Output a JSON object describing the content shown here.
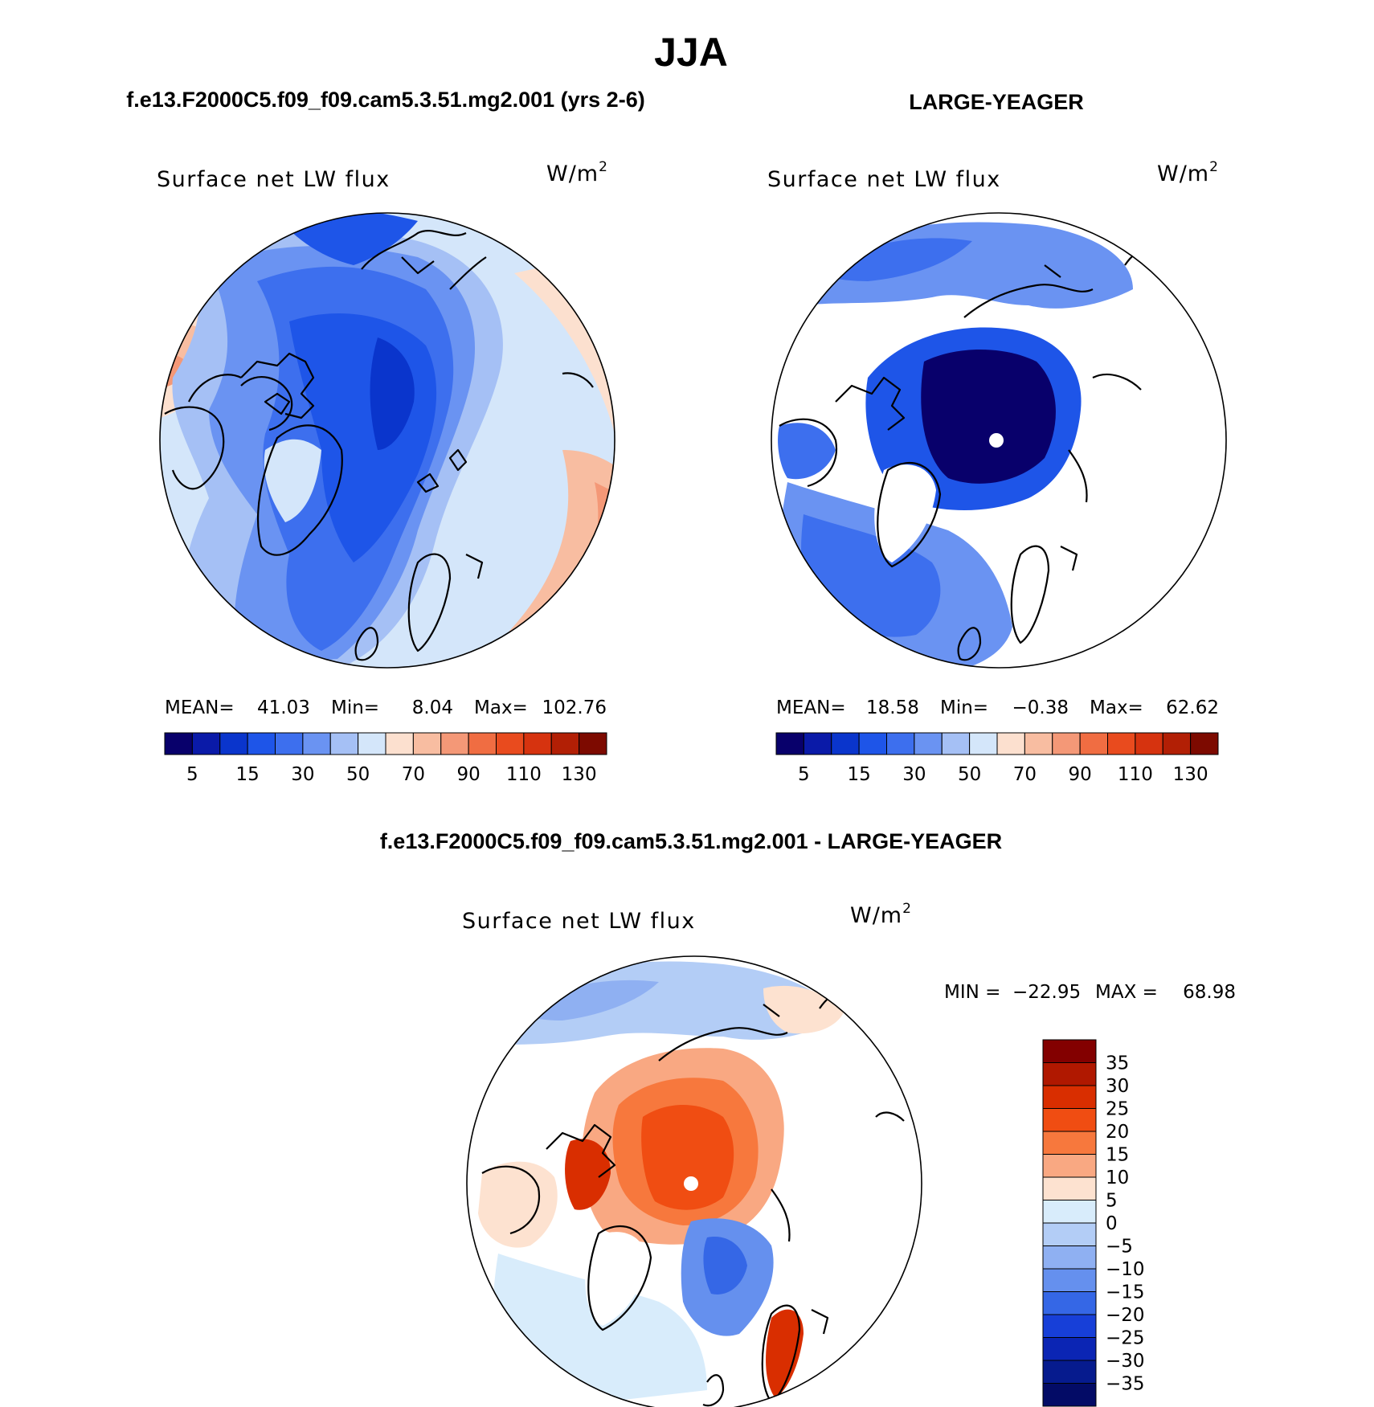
{
  "figure": {
    "season": "JJA",
    "left_header": "f.e13.F2000C5.f09_f09.cam5.3.51.mg2.001 (yrs 2-6)",
    "right_header": "LARGE-YEAGER",
    "diff_header": "f.e13.F2000C5.f09_f09.cam5.3.51.mg2.001 - LARGE-YEAGER"
  },
  "chart_data": [
    {
      "type": "heatmap",
      "projection": "north-polar-stereographic",
      "title": "Surface net LW flux",
      "units": "W/m2",
      "stats": {
        "mean_label": "MEAN=",
        "mean": "41.03",
        "min_label": "Min=",
        "min": "8.04",
        "max_label": "Max=",
        "max": "102.76"
      },
      "colorbar": {
        "orientation": "horizontal",
        "levels": [
          5,
          10,
          15,
          20,
          30,
          40,
          50,
          60,
          70,
          80,
          90,
          100,
          110,
          120,
          130
        ],
        "tick_labels": [
          "5",
          "15",
          "30",
          "50",
          "70",
          "90",
          "110",
          "130"
        ]
      }
    },
    {
      "type": "heatmap",
      "projection": "north-polar-stereographic",
      "title": "Surface net LW flux",
      "units": "W/m2",
      "stats": {
        "mean_label": "MEAN=",
        "mean": "18.58",
        "min_label": "Min=",
        "min": "−0.38",
        "max_label": "Max=",
        "max": "62.62"
      },
      "colorbar": {
        "orientation": "horizontal",
        "levels": [
          5,
          10,
          15,
          20,
          30,
          40,
          50,
          60,
          70,
          80,
          90,
          100,
          110,
          120,
          130
        ],
        "tick_labels": [
          "5",
          "15",
          "30",
          "50",
          "70",
          "90",
          "110",
          "130"
        ]
      }
    },
    {
      "type": "heatmap",
      "projection": "north-polar-stereographic",
      "title": "Surface net LW flux",
      "units": "W/m2",
      "minmax": {
        "min_label": "MIN =",
        "min": "−22.95",
        "max_label": "MAX =",
        "max": "68.98"
      },
      "colorbar": {
        "orientation": "vertical",
        "levels": [
          35,
          30,
          25,
          20,
          15,
          10,
          5,
          0,
          -5,
          -10,
          -15,
          -20,
          -25,
          -30,
          -35
        ],
        "tick_labels": [
          "35",
          "30",
          "25",
          "20",
          "15",
          "10",
          "5",
          "0",
          "−5",
          "−10",
          "−15",
          "−20",
          "−25",
          "−30",
          "−35"
        ]
      }
    }
  ],
  "palette": {
    "seq16": [
      "#08006b",
      "#0a1aa8",
      "#0a35cc",
      "#1e55e8",
      "#3d6fee",
      "#6a93f2",
      "#a5c0f5",
      "#d4e6fa",
      "#fce0cf",
      "#f8bda1",
      "#f49877",
      "#f06d42",
      "#e94b1e",
      "#d6330f",
      "#b21f05",
      "#7d0a00"
    ],
    "div16": [
      "#830000",
      "#b01800",
      "#d92e00",
      "#f04d12",
      "#f7783d",
      "#f9a882",
      "#fde2d0",
      "#d8ecfb",
      "#b3cdf6",
      "#8fb0f2",
      "#6590ee",
      "#3567e6",
      "#173fd8",
      "#0b25b4",
      "#061b8e",
      "#030b66"
    ]
  }
}
